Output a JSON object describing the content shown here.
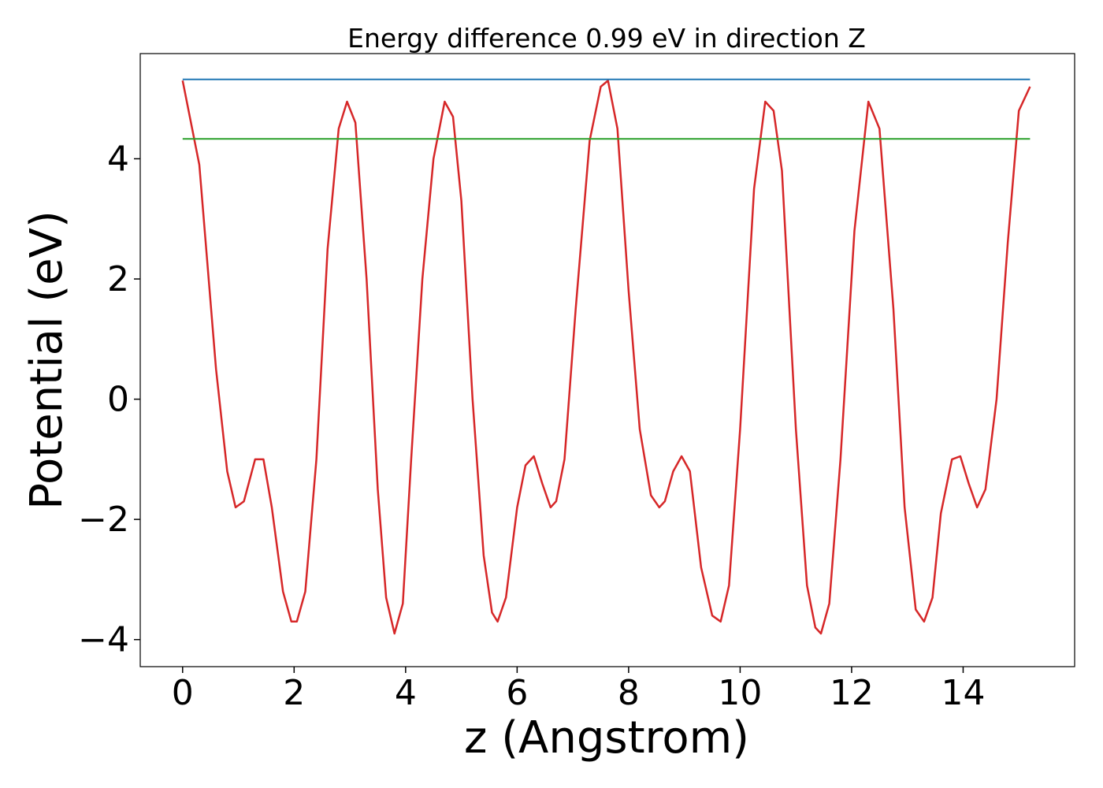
{
  "chart_data": {
    "type": "line",
    "title": "Energy difference 0.99 eV in direction Z",
    "xlabel": "z (Angstrom)",
    "ylabel": "Potential (eV)",
    "xlim": [
      -0.76,
      16.0
    ],
    "ylim": [
      -4.45,
      5.75
    ],
    "xticks": [
      0,
      2,
      4,
      6,
      8,
      10,
      12,
      14
    ],
    "xtick_labels": [
      "0",
      "2",
      "4",
      "6",
      "8",
      "10",
      "12",
      "14"
    ],
    "yticks": [
      -4,
      -2,
      0,
      2,
      4
    ],
    "ytick_labels": [
      "−4",
      "−2",
      "0",
      "2",
      "4"
    ],
    "grid": false,
    "series": [
      {
        "color": "#d62728",
        "x": [
          0.0,
          0.3,
          0.6,
          0.8,
          0.95,
          1.1,
          1.3,
          1.45,
          1.6,
          1.8,
          1.95,
          2.05,
          2.2,
          2.4,
          2.6,
          2.8,
          2.95,
          3.1,
          3.3,
          3.5,
          3.65,
          3.8,
          3.95,
          4.1,
          4.3,
          4.5,
          4.7,
          4.85,
          5.0,
          5.2,
          5.4,
          5.55,
          5.65,
          5.8,
          6.0,
          6.15,
          6.3,
          6.45,
          6.6,
          6.7,
          6.85,
          7.05,
          7.3,
          7.5,
          7.63,
          7.8,
          8.0,
          8.2,
          8.4,
          8.55,
          8.65,
          8.8,
          8.95,
          9.1,
          9.3,
          9.5,
          9.65,
          9.8,
          10.0,
          10.25,
          10.45,
          10.6,
          10.75,
          11.0,
          11.2,
          11.35,
          11.45,
          11.6,
          11.8,
          12.05,
          12.3,
          12.5,
          12.75,
          12.95,
          13.15,
          13.3,
          13.45,
          13.6,
          13.8,
          13.95,
          14.1,
          14.25,
          14.4,
          14.6,
          14.8,
          15.0,
          15.2
        ],
        "y": [
          5.3,
          3.9,
          0.5,
          -1.2,
          -1.8,
          -1.7,
          -1.0,
          -1.0,
          -1.8,
          -3.2,
          -3.7,
          -3.7,
          -3.2,
          -1.0,
          2.5,
          4.5,
          4.95,
          4.6,
          2.0,
          -1.5,
          -3.3,
          -3.9,
          -3.4,
          -1.0,
          2.0,
          4.0,
          4.95,
          4.7,
          3.3,
          0.0,
          -2.6,
          -3.55,
          -3.7,
          -3.3,
          -1.8,
          -1.1,
          -0.95,
          -1.4,
          -1.8,
          -1.7,
          -1.0,
          1.5,
          4.3,
          5.2,
          5.3,
          4.5,
          1.8,
          -0.5,
          -1.6,
          -1.8,
          -1.7,
          -1.2,
          -0.95,
          -1.2,
          -2.8,
          -3.6,
          -3.7,
          -3.1,
          -0.5,
          3.5,
          4.95,
          4.8,
          3.8,
          -0.5,
          -3.1,
          -3.8,
          -3.9,
          -3.4,
          -1.0,
          2.8,
          4.95,
          4.5,
          1.5,
          -1.8,
          -3.5,
          -3.7,
          -3.3,
          -1.9,
          -1.0,
          -0.95,
          -1.4,
          -1.8,
          -1.5,
          0.0,
          2.6,
          4.8,
          5.2
        ]
      },
      {
        "color": "#1f77b4",
        "x": [
          0.0,
          15.2
        ],
        "y": [
          5.32,
          5.32
        ]
      },
      {
        "color": "#2ca02c",
        "x": [
          0.0,
          15.2
        ],
        "y": [
          4.33,
          4.33
        ]
      }
    ]
  }
}
